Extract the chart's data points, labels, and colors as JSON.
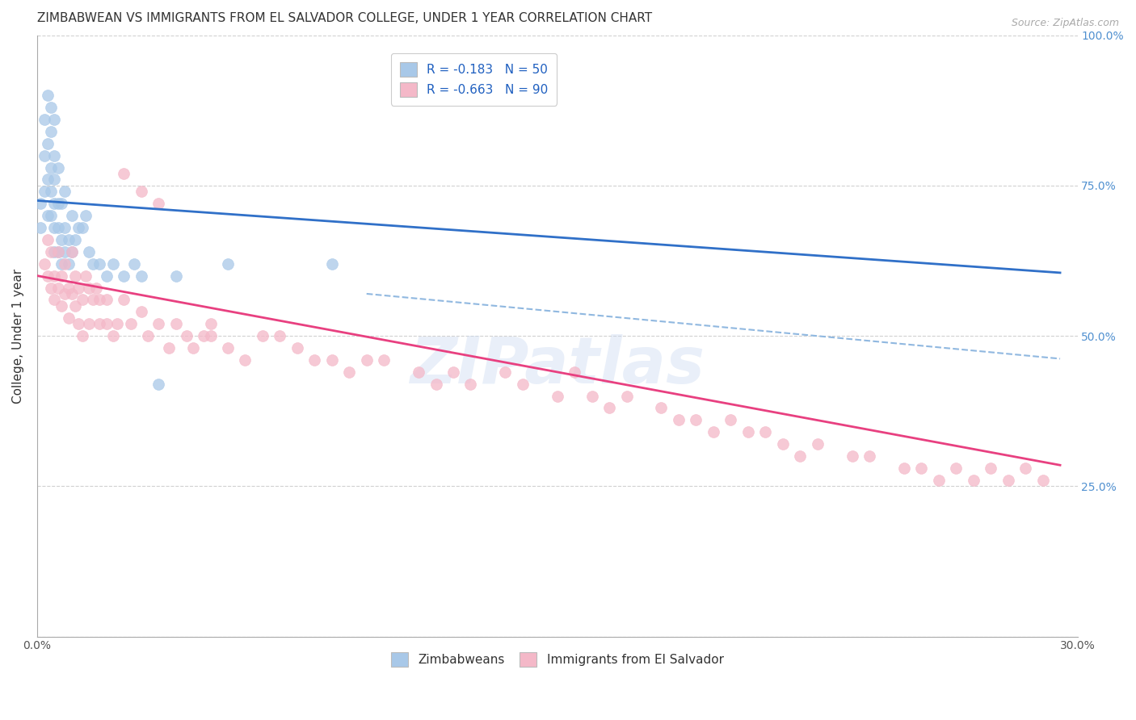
{
  "title": "ZIMBABWEAN VS IMMIGRANTS FROM EL SALVADOR COLLEGE, UNDER 1 YEAR CORRELATION CHART",
  "source": "Source: ZipAtlas.com",
  "ylabel": "College, Under 1 year",
  "xmin": 0.0,
  "xmax": 0.3,
  "ymin": 0.0,
  "ymax": 1.0,
  "yticks": [
    0.0,
    0.25,
    0.5,
    0.75,
    1.0
  ],
  "ytick_labels": [
    "",
    "25.0%",
    "50.0%",
    "75.0%",
    "100.0%"
  ],
  "xticks": [
    0.0,
    0.05,
    0.1,
    0.15,
    0.2,
    0.25,
    0.3
  ],
  "xtick_labels": [
    "0.0%",
    "",
    "",
    "",
    "",
    "",
    "30.0%"
  ],
  "blue_R": -0.183,
  "blue_N": 50,
  "pink_R": -0.663,
  "pink_N": 90,
  "blue_color": "#a8c8e8",
  "pink_color": "#f4b8c8",
  "blue_line_color": "#3070c8",
  "pink_line_color": "#e84080",
  "dashed_line_color": "#90b8e0",
  "legend_label_blue": "Zimbabweans",
  "legend_label_pink": "Immigrants from El Salvador",
  "blue_scatter_x": [
    0.001,
    0.001,
    0.002,
    0.002,
    0.002,
    0.003,
    0.003,
    0.003,
    0.003,
    0.004,
    0.004,
    0.004,
    0.004,
    0.004,
    0.005,
    0.005,
    0.005,
    0.005,
    0.005,
    0.005,
    0.006,
    0.006,
    0.006,
    0.006,
    0.007,
    0.007,
    0.007,
    0.008,
    0.008,
    0.008,
    0.009,
    0.009,
    0.01,
    0.01,
    0.011,
    0.012,
    0.013,
    0.014,
    0.015,
    0.016,
    0.018,
    0.02,
    0.022,
    0.025,
    0.028,
    0.03,
    0.035,
    0.04,
    0.055,
    0.085
  ],
  "blue_scatter_y": [
    0.68,
    0.72,
    0.74,
    0.8,
    0.86,
    0.7,
    0.76,
    0.82,
    0.9,
    0.7,
    0.74,
    0.78,
    0.84,
    0.88,
    0.64,
    0.68,
    0.72,
    0.76,
    0.8,
    0.86,
    0.64,
    0.68,
    0.72,
    0.78,
    0.62,
    0.66,
    0.72,
    0.64,
    0.68,
    0.74,
    0.62,
    0.66,
    0.64,
    0.7,
    0.66,
    0.68,
    0.68,
    0.7,
    0.64,
    0.62,
    0.62,
    0.6,
    0.62,
    0.6,
    0.62,
    0.6,
    0.42,
    0.6,
    0.62,
    0.62
  ],
  "pink_scatter_x": [
    0.002,
    0.003,
    0.003,
    0.004,
    0.004,
    0.005,
    0.005,
    0.006,
    0.006,
    0.007,
    0.007,
    0.008,
    0.008,
    0.009,
    0.009,
    0.01,
    0.01,
    0.011,
    0.011,
    0.012,
    0.012,
    0.013,
    0.013,
    0.014,
    0.015,
    0.015,
    0.016,
    0.017,
    0.018,
    0.018,
    0.02,
    0.02,
    0.022,
    0.023,
    0.025,
    0.027,
    0.03,
    0.032,
    0.035,
    0.038,
    0.04,
    0.043,
    0.045,
    0.048,
    0.05,
    0.055,
    0.06,
    0.065,
    0.07,
    0.075,
    0.08,
    0.085,
    0.09,
    0.095,
    0.1,
    0.11,
    0.115,
    0.12,
    0.125,
    0.135,
    0.14,
    0.15,
    0.155,
    0.16,
    0.165,
    0.17,
    0.18,
    0.185,
    0.19,
    0.195,
    0.2,
    0.205,
    0.21,
    0.215,
    0.22,
    0.225,
    0.235,
    0.24,
    0.25,
    0.255,
    0.26,
    0.265,
    0.27,
    0.275,
    0.28,
    0.285,
    0.29,
    0.025,
    0.03,
    0.035,
    0.05
  ],
  "pink_scatter_y": [
    0.62,
    0.6,
    0.66,
    0.58,
    0.64,
    0.6,
    0.56,
    0.64,
    0.58,
    0.6,
    0.55,
    0.62,
    0.57,
    0.58,
    0.53,
    0.64,
    0.57,
    0.6,
    0.55,
    0.58,
    0.52,
    0.56,
    0.5,
    0.6,
    0.58,
    0.52,
    0.56,
    0.58,
    0.56,
    0.52,
    0.56,
    0.52,
    0.5,
    0.52,
    0.56,
    0.52,
    0.54,
    0.5,
    0.52,
    0.48,
    0.52,
    0.5,
    0.48,
    0.5,
    0.52,
    0.48,
    0.46,
    0.5,
    0.5,
    0.48,
    0.46,
    0.46,
    0.44,
    0.46,
    0.46,
    0.44,
    0.42,
    0.44,
    0.42,
    0.44,
    0.42,
    0.4,
    0.44,
    0.4,
    0.38,
    0.4,
    0.38,
    0.36,
    0.36,
    0.34,
    0.36,
    0.34,
    0.34,
    0.32,
    0.3,
    0.32,
    0.3,
    0.3,
    0.28,
    0.28,
    0.26,
    0.28,
    0.26,
    0.28,
    0.26,
    0.28,
    0.26,
    0.77,
    0.74,
    0.72,
    0.5
  ],
  "blue_line_x0": 0.0,
  "blue_line_x1": 0.295,
  "blue_line_y0": 0.725,
  "blue_line_y1": 0.605,
  "pink_line_x0": 0.0,
  "pink_line_x1": 0.295,
  "pink_line_y0": 0.6,
  "pink_line_y1": 0.285,
  "dashed_line_x0": 0.095,
  "dashed_line_x1": 0.295,
  "dashed_line_y0": 0.57,
  "dashed_line_y1": 0.462,
  "watermark": "ZIPatlas",
  "bg_color": "#ffffff",
  "grid_color": "#cccccc",
  "right_axis_color": "#5090d0",
  "title_fontsize": 11,
  "axis_label_fontsize": 11,
  "tick_fontsize": 10,
  "legend_fontsize": 11
}
